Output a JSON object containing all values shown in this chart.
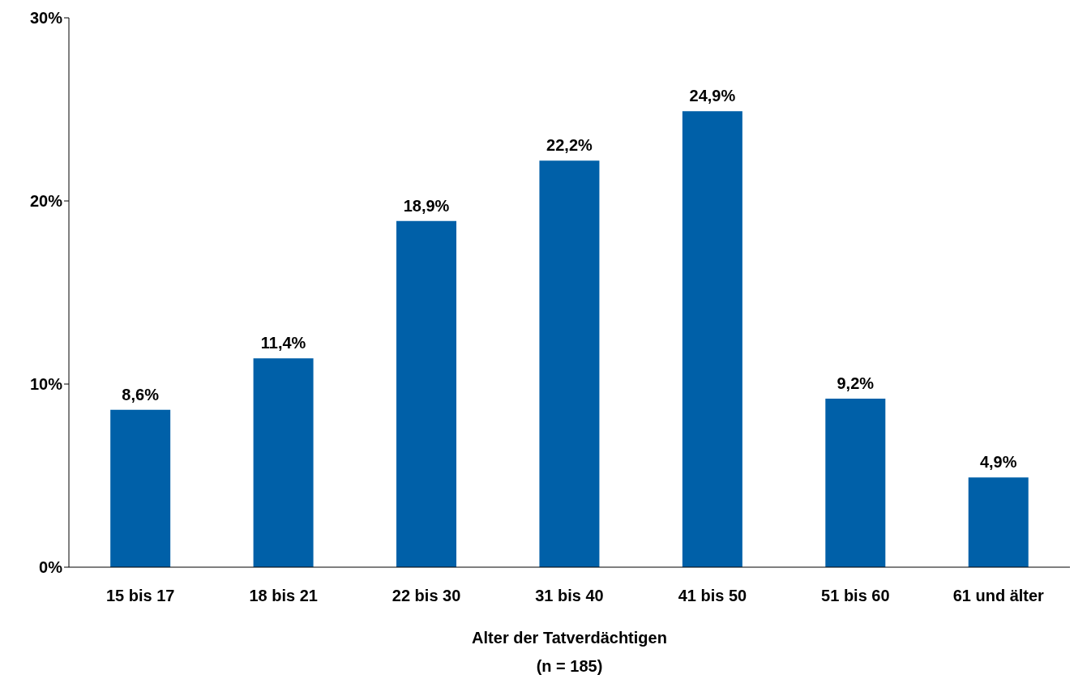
{
  "chart_data": {
    "type": "bar",
    "xlabel": "Alter der Tatverdächtigen\n(n = 185)",
    "categories": [
      "15 bis 17",
      "18 bis 21",
      "22 bis 30",
      "31 bis 40",
      "41 bis 50",
      "51 bis 60",
      "61 und älter"
    ],
    "values": [
      8.6,
      11.4,
      18.9,
      22.2,
      24.9,
      9.2,
      4.9
    ],
    "value_labels": [
      "8,6%",
      "11,4%",
      "18,9%",
      "22,2%",
      "24,9%",
      "9,2%",
      "4,9%"
    ],
    "color": "#0060a8",
    "ylim": [
      0,
      30
    ],
    "yticks": [
      {
        "value": 0,
        "label": "0%"
      },
      {
        "value": 10,
        "label": "10%"
      },
      {
        "value": 20,
        "label": "20%"
      },
      {
        "value": 30,
        "label": "30%"
      }
    ],
    "grid": false,
    "legend": false
  }
}
